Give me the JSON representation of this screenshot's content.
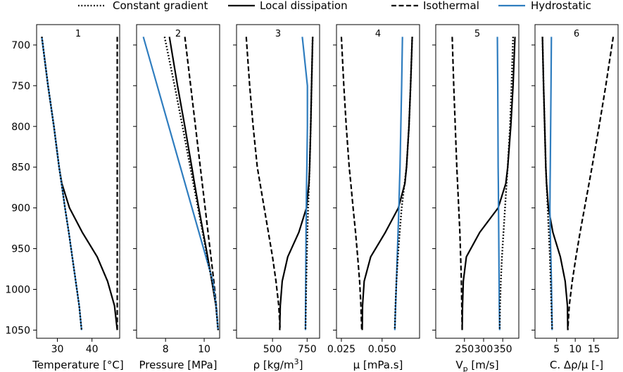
{
  "legend": [
    {
      "name": "Constant gradient",
      "style": "dotted",
      "color": "#000000"
    },
    {
      "name": "Local dissipation",
      "style": "solid",
      "color": "#000000"
    },
    {
      "name": "Isothermal",
      "style": "dashed",
      "color": "#000000"
    },
    {
      "name": "Hydrostatic",
      "style": "solid",
      "color": "#2f7dbf"
    }
  ],
  "chart_data": {
    "type": "line",
    "shared_y": {
      "ticks": [
        700,
        750,
        800,
        850,
        900,
        950,
        1000,
        1050
      ],
      "tick_labels": [
        "700",
        "750",
        "800",
        "850",
        "900",
        "950",
        "1000",
        "1050"
      ],
      "ylim": [
        1060,
        675
      ],
      "inverted": true
    },
    "y": [
      690,
      750,
      800,
      850,
      870,
      900,
      930,
      960,
      990,
      1020,
      1050
    ],
    "panels": [
      {
        "title": "1",
        "xlabel_parts": [
          {
            "t": "Temperature [°C]"
          }
        ],
        "xlim": [
          24,
          48
        ],
        "xticks": [
          30,
          40
        ],
        "xtick_labels": [
          "30",
          "40"
        ],
        "series": [
          {
            "name": "Constant gradient",
            "values": [
              25.5,
              27.3,
              29.0,
              30.5,
              31.2,
              32.2,
              33.3,
              34.3,
              35.3,
              36.3,
              37.0
            ]
          },
          {
            "name": "Local dissipation",
            "values": [
              25.5,
              27.3,
              29.0,
              30.5,
              31.3,
              33.5,
              37.2,
              41.5,
              44.5,
              46.5,
              47.3
            ]
          },
          {
            "name": "Isothermal",
            "values": [
              47.3,
              47.3,
              47.3,
              47.3,
              47.3,
              47.3,
              47.3,
              47.3,
              47.3,
              47.3,
              47.3
            ]
          },
          {
            "name": "Hydrostatic",
            "values": [
              25.5,
              27.3,
              29.0,
              30.5,
              31.2,
              32.2,
              33.3,
              34.3,
              35.3,
              36.3,
              37.0
            ]
          }
        ]
      },
      {
        "title": "2",
        "xlabel_parts": [
          {
            "t": "Pressure [MPa]"
          }
        ],
        "xlim": [
          6.5,
          10.8
        ],
        "xticks": [
          8,
          10
        ],
        "xtick_labels": [
          "8",
          "10"
        ],
        "series": [
          {
            "name": "Constant gradient",
            "values": [
              7.95,
              8.47,
              8.88,
              9.28,
              9.44,
              9.68,
              9.92,
              10.16,
              10.4,
              10.61,
              10.72
            ]
          },
          {
            "name": "Local dissipation",
            "values": [
              8.2,
              8.62,
              9.0,
              9.36,
              9.5,
              9.72,
              9.95,
              10.18,
              10.4,
              10.61,
              10.72
            ]
          },
          {
            "name": "Isothermal",
            "values": [
              9.0,
              9.3,
              9.55,
              9.8,
              9.9,
              10.05,
              10.2,
              10.35,
              10.5,
              10.63,
              10.72
            ]
          },
          {
            "name": "Hydrostatic",
            "values": [
              6.85,
              7.57,
              8.17,
              8.77,
              9.01,
              9.37,
              9.73,
              10.09,
              10.45,
              10.62,
              10.72
            ]
          }
        ]
      },
      {
        "title": "3",
        "xlabel_parts": [
          {
            "t": "ρ [kg/m"
          },
          {
            "t": "3",
            "sup": true
          },
          {
            "t": "]"
          }
        ],
        "xlim": [
          240,
          840
        ],
        "xticks": [
          500,
          750
        ],
        "xtick_labels": [
          "500",
          "750"
        ],
        "series": [
          {
            "name": "Constant gradient",
            "values": [
              790,
              782,
              776,
              768,
              764,
              757,
              752,
              748,
              744,
              741,
              738
            ]
          },
          {
            "name": "Local dissipation",
            "values": [
              790,
              782,
              776,
              768,
              763,
              745,
              690,
              610,
              570,
              556,
              552
            ]
          },
          {
            "name": "Isothermal",
            "values": [
              310,
              335,
              360,
              390,
              410,
              440,
              470,
              500,
              525,
              545,
              555
            ]
          },
          {
            "name": "Hydrostatic",
            "values": [
              715,
              752,
              752,
              748,
              746,
              744,
              742,
              741,
              740,
              739,
              738
            ]
          }
        ]
      },
      {
        "title": "4",
        "xlabel_parts": [
          {
            "t": "μ [mPa.s]"
          }
        ],
        "xlim": [
          0.022,
          0.073
        ],
        "xticks": [
          0.025,
          0.05
        ],
        "xtick_labels": [
          "0.025",
          "0.050"
        ],
        "series": [
          {
            "name": "Constant gradient",
            "values": [
              0.0685,
              0.0675,
              0.0665,
              0.065,
              0.0638,
              0.062,
              0.0608,
              0.0597,
              0.0588,
              0.0582,
              0.0578
            ]
          },
          {
            "name": "Local dissipation",
            "values": [
              0.0685,
              0.0675,
              0.0665,
              0.065,
              0.064,
              0.06,
              0.052,
              0.043,
              0.039,
              0.038,
              0.0378
            ]
          },
          {
            "name": "Isothermal",
            "values": [
              0.025,
              0.0265,
              0.028,
              0.0298,
              0.0308,
              0.0322,
              0.0337,
              0.035,
              0.0362,
              0.037,
              0.0375
            ]
          },
          {
            "name": "Hydrostatic",
            "values": [
              0.0625,
              0.062,
              0.0615,
              0.061,
              0.0607,
              0.0603,
              0.0598,
              0.0593,
              0.0588,
              0.0583,
              0.0578
            ]
          }
        ]
      },
      {
        "title": "5",
        "xlabel_parts": [
          {
            "t": "V"
          },
          {
            "t": "p",
            "sub": true
          },
          {
            "t": " [m/s]"
          }
        ],
        "xlim": [
          175,
          392
        ],
        "xticks": [
          250,
          300,
          350
        ],
        "xtick_labels": [
          "250",
          "300",
          "350"
        ],
        "series": [
          {
            "name": "Constant gradient",
            "values": [
              377,
              373,
              369,
              363,
              360,
              356,
              352,
              348,
              345,
              343,
              342
            ]
          },
          {
            "name": "Local dissipation",
            "values": [
              382,
              377,
              371,
              363,
              358,
              338,
              290,
              255,
              247,
              245,
              244
            ]
          },
          {
            "name": "Isothermal",
            "values": [
              218,
              222,
              226,
              230,
              232,
              235,
              238,
              240,
              242,
              243,
              244
            ]
          },
          {
            "name": "Hydrostatic",
            "values": [
              336,
              337,
              337.5,
              338,
              338.5,
              339,
              339.5,
              340,
              340.5,
              341,
              342
            ]
          }
        ]
      },
      {
        "title": "6",
        "xlabel_parts": [
          {
            "t": "C. Δρ/μ [-]"
          }
        ],
        "xlim": [
          -0.8,
          21.5
        ],
        "xticks": [
          5,
          10,
          15
        ],
        "xtick_labels": [
          "5",
          "10",
          "15"
        ],
        "series": [
          {
            "name": "Constant gradient",
            "values": [
              1.2,
              1.5,
              1.8,
              2.1,
              2.3,
              2.6,
              2.9,
              3.2,
              3.4,
              3.6,
              3.8
            ]
          },
          {
            "name": "Local dissipation",
            "values": [
              1.2,
              1.5,
              1.8,
              2.1,
              2.3,
              2.8,
              4.0,
              6.0,
              7.3,
              7.9,
              8.0
            ]
          },
          {
            "name": "Isothermal",
            "values": [
              20.2,
              18.2,
              16.4,
              14.5,
              13.7,
              12.5,
              11.3,
              10.2,
              9.2,
              8.4,
              8.0
            ]
          },
          {
            "name": "Hydrostatic",
            "values": [
              3.6,
              3.5,
              3.4,
              3.3,
              3.25,
              3.2,
              3.3,
              3.45,
              3.6,
              3.7,
              3.8
            ]
          }
        ]
      }
    ]
  }
}
